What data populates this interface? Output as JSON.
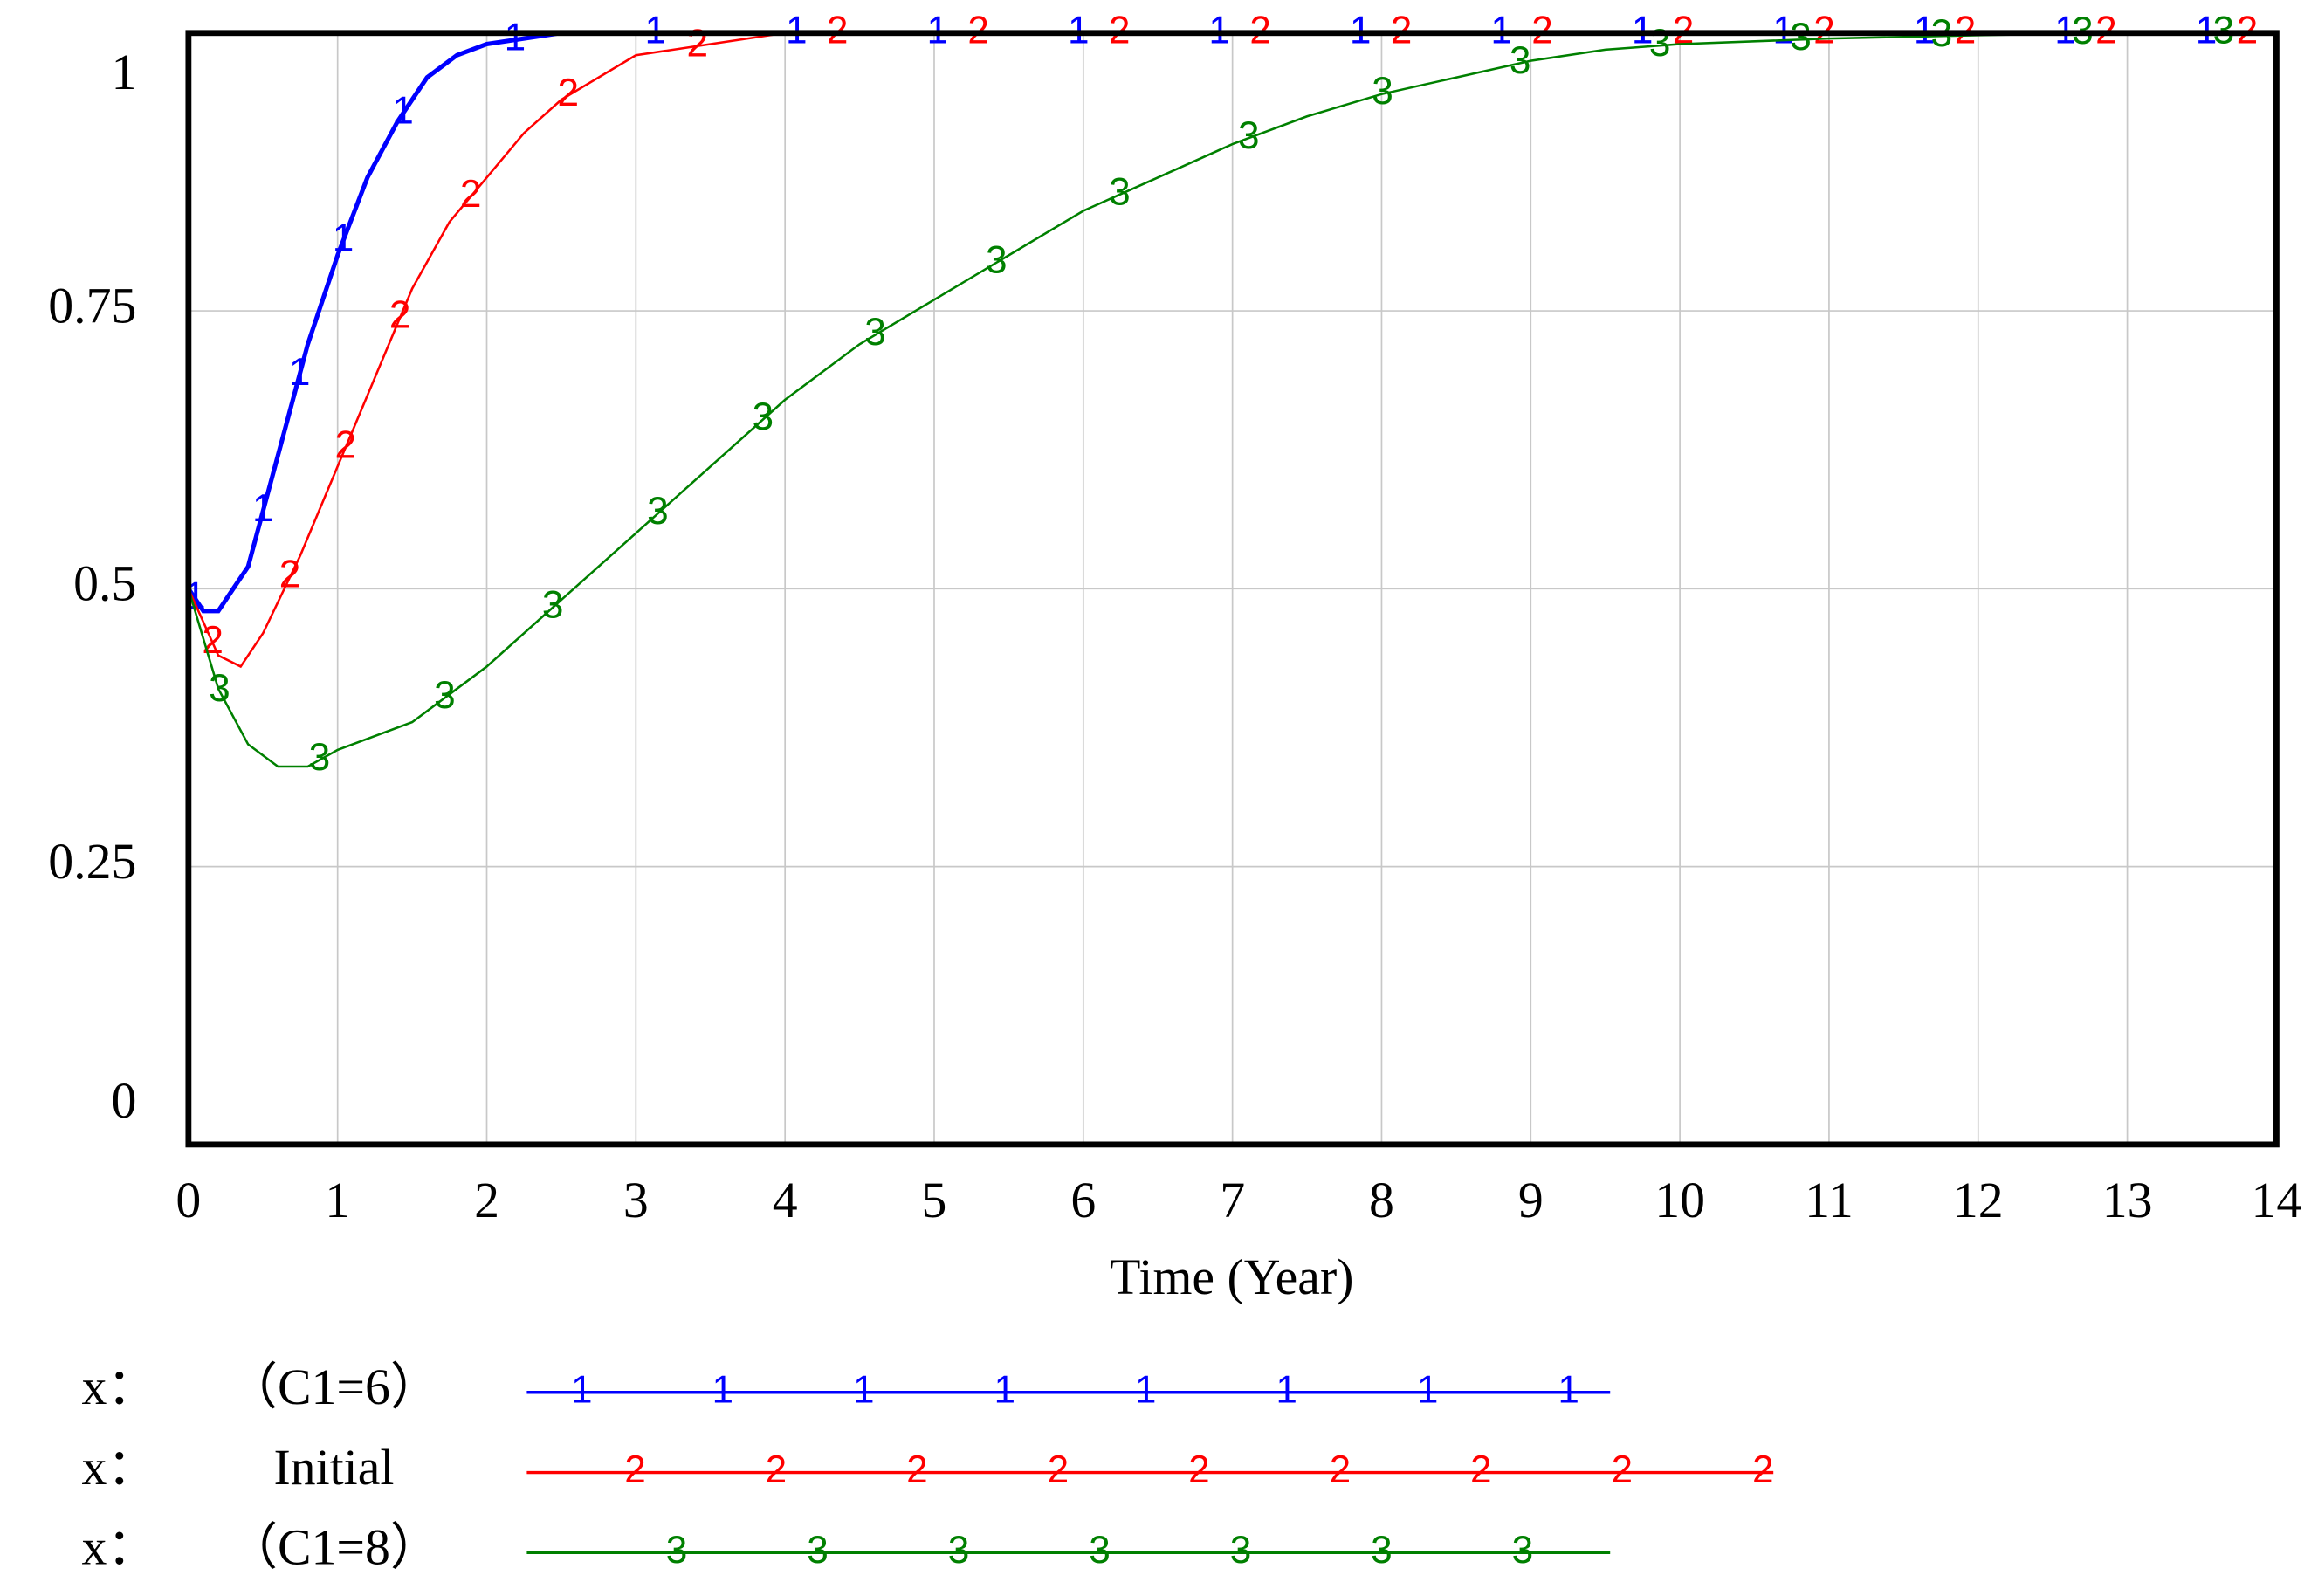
{
  "chart_data": {
    "type": "line",
    "xlabel": "Time (Year)",
    "legend_prefix": "x：",
    "xlim": [
      0,
      14
    ],
    "xticks": [
      0,
      1,
      2,
      3,
      4,
      5,
      6,
      7,
      8,
      9,
      10,
      11,
      12,
      13,
      14
    ],
    "ylim": [
      0,
      1
    ],
    "yticks": [
      0,
      0.25,
      0.5,
      0.75,
      1
    ],
    "grid": true,
    "series": [
      {
        "name": "（C1=6）",
        "marker": "1",
        "color": "#0000ff",
        "x": [
          0,
          0.1,
          0.2,
          0.4,
          0.6,
          0.8,
          1.0,
          1.2,
          1.4,
          1.6,
          1.8,
          2.0,
          2.5,
          3,
          14
        ],
        "values": [
          0.5,
          0.48,
          0.48,
          0.52,
          0.62,
          0.72,
          0.8,
          0.87,
          0.92,
          0.96,
          0.98,
          0.99,
          1.0,
          1.0,
          1.0
        ]
      },
      {
        "name": "Initial",
        "marker": "2",
        "color": "#ff0000",
        "x": [
          0,
          0.2,
          0.35,
          0.5,
          0.75,
          1.0,
          1.25,
          1.5,
          1.75,
          2.0,
          2.25,
          2.5,
          3,
          3.5,
          4,
          14
        ],
        "values": [
          0.5,
          0.44,
          0.43,
          0.46,
          0.53,
          0.61,
          0.69,
          0.77,
          0.83,
          0.87,
          0.91,
          0.94,
          0.98,
          0.99,
          1.0,
          1.0
        ]
      },
      {
        "name": "（C1=8）",
        "marker": "3",
        "color": "#008000",
        "x": [
          0,
          0.2,
          0.4,
          0.6,
          0.8,
          1.0,
          1.5,
          2.0,
          2.5,
          3,
          3.5,
          4,
          4.5,
          5,
          5.5,
          6,
          6.5,
          7,
          7.5,
          8,
          8.5,
          9,
          9.5,
          10,
          11,
          12,
          13,
          14
        ],
        "values": [
          0.5,
          0.41,
          0.36,
          0.34,
          0.34,
          0.355,
          0.38,
          0.43,
          0.49,
          0.55,
          0.61,
          0.67,
          0.72,
          0.76,
          0.8,
          0.84,
          0.87,
          0.9,
          0.925,
          0.945,
          0.96,
          0.975,
          0.985,
          0.99,
          0.995,
          0.998,
          1.0,
          1.0
        ]
      }
    ]
  }
}
